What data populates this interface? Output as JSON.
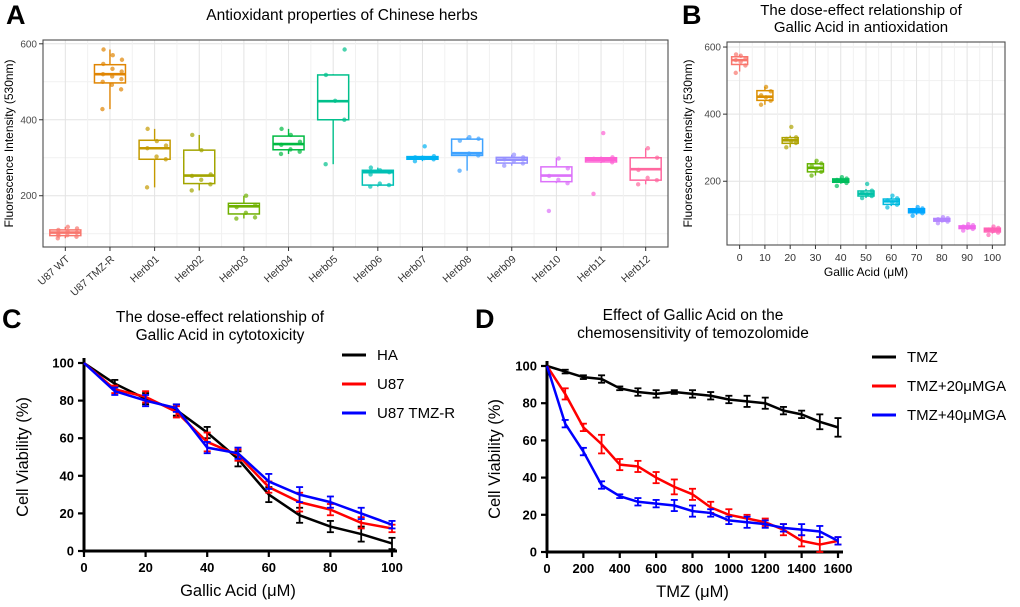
{
  "chart_data": [
    {
      "panel": "A",
      "type": "box",
      "title": "Antioxidant properties of Chinese herbs",
      "title_lines": [
        "Antioxidant properties of Chinese herbs"
      ],
      "xlabel": "",
      "ylabel": "Fluorescence Intensity (530nm)",
      "ylim": [
        65,
        610
      ],
      "yticks": [
        200,
        400,
        600
      ],
      "yticks_minor": [
        100,
        300,
        500
      ],
      "grid": true,
      "boxes": [
        {
          "category": "U87 WT",
          "color": "#F8766D",
          "low": 88,
          "q1": 95,
          "median": 103,
          "q3": 110,
          "high": 118,
          "points": [
            88,
            92,
            96,
            100,
            103,
            106,
            110,
            114,
            118,
            95
          ]
        },
        {
          "category": "U87 TMZ-R",
          "color": "#E08503",
          "low": 428,
          "q1": 497,
          "median": 520,
          "q3": 545,
          "high": 585,
          "points": [
            428,
            480,
            492,
            500,
            507,
            514,
            520,
            527,
            534,
            547,
            558,
            570,
            585
          ]
        },
        {
          "category": "Herb01",
          "color": "#C49A00",
          "low": 222,
          "q1": 296,
          "median": 325,
          "q3": 346,
          "high": 376,
          "points": [
            222,
            296,
            303,
            325,
            332,
            344,
            376
          ]
        },
        {
          "category": "Herb02",
          "color": "#A3A500",
          "low": 214,
          "q1": 232,
          "median": 253,
          "q3": 320,
          "high": 360,
          "points": [
            214,
            230,
            242,
            252,
            256,
            320,
            360
          ]
        },
        {
          "category": "Herb03",
          "color": "#6FB000",
          "low": 140,
          "q1": 152,
          "median": 172,
          "q3": 180,
          "high": 200,
          "points": [
            140,
            143,
            155,
            170,
            176,
            200
          ]
        },
        {
          "category": "Herb04",
          "color": "#00BA42",
          "low": 310,
          "q1": 321,
          "median": 336,
          "q3": 357,
          "high": 376,
          "points": [
            310,
            316,
            322,
            334,
            342,
            360,
            376
          ]
        },
        {
          "category": "Herb05",
          "color": "#00C08B",
          "low": 283,
          "q1": 400,
          "median": 449,
          "q3": 518,
          "high": 520,
          "points": [
            283,
            400,
            450,
            518,
            585
          ]
        },
        {
          "category": "Herb06",
          "color": "#00C0B4",
          "low": 224,
          "q1": 228,
          "median": 262,
          "q3": 267,
          "high": 274,
          "points": [
            224,
            228,
            232,
            256,
            262,
            267,
            274
          ]
        },
        {
          "category": "Herb07",
          "color": "#00B2F3",
          "low": 291,
          "q1": 296,
          "median": 300,
          "q3": 303,
          "high": 306,
          "points": [
            291,
            296,
            299,
            301,
            304,
            330
          ]
        },
        {
          "category": "Herb08",
          "color": "#3EA2FF",
          "low": 266,
          "q1": 306,
          "median": 312,
          "q3": 349,
          "high": 354,
          "points": [
            266,
            306,
            311,
            345,
            350,
            354
          ]
        },
        {
          "category": "Herb09",
          "color": "#9590FF",
          "low": 279,
          "q1": 286,
          "median": 295,
          "q3": 301,
          "high": 308,
          "points": [
            279,
            285,
            291,
            296,
            301,
            308
          ]
        },
        {
          "category": "Herb10",
          "color": "#DC71FA",
          "low": 233,
          "q1": 237,
          "median": 253,
          "q3": 276,
          "high": 300,
          "points": [
            160,
            233,
            242,
            252,
            272,
            298
          ]
        },
        {
          "category": "Herb11",
          "color": "#FD61D3",
          "low": 286,
          "q1": 289,
          "median": 295,
          "q3": 300,
          "high": 303,
          "points": [
            205,
            288,
            293,
            297,
            301,
            365
          ]
        },
        {
          "category": "Herb12",
          "color": "#FF689F",
          "low": 230,
          "q1": 241,
          "median": 270,
          "q3": 300,
          "high": 325,
          "points": [
            230,
            241,
            247,
            268,
            300,
            325
          ]
        }
      ]
    },
    {
      "panel": "B",
      "type": "box",
      "title": "The dose-effect relationship of Gallic Acid in antioxidation",
      "title_lines": [
        "The dose-effect relationship of",
        "Gallic Acid in antioxidation"
      ],
      "xlabel": "Gallic Acid (μM)",
      "ylabel": "Fluorescence Intensity (530nm)",
      "ylim": [
        10,
        615
      ],
      "yticks": [
        200,
        400,
        600
      ],
      "yticks_minor": [
        100,
        300,
        500
      ],
      "grid": true,
      "boxes": [
        {
          "category": "0",
          "color": "#F8766D",
          "low": 527,
          "q1": 548,
          "median": 561,
          "q3": 571,
          "high": 577,
          "points": [
            523,
            545,
            556,
            561,
            566,
            574,
            578
          ]
        },
        {
          "category": "10",
          "color": "#DB8E00",
          "low": 428,
          "q1": 441,
          "median": 452,
          "q3": 470,
          "high": 481,
          "points": [
            428,
            440,
            450,
            456,
            468,
            481
          ]
        },
        {
          "category": "20",
          "color": "#AEA200",
          "low": 301,
          "q1": 313,
          "median": 322,
          "q3": 330,
          "high": 336,
          "points": [
            301,
            314,
            320,
            326,
            331,
            362
          ]
        },
        {
          "category": "30",
          "color": "#64B200",
          "low": 217,
          "q1": 228,
          "median": 240,
          "q3": 252,
          "high": 261,
          "points": [
            217,
            228,
            237,
            246,
            253,
            261
          ]
        },
        {
          "category": "40",
          "color": "#00BD5C",
          "low": 193,
          "q1": 197,
          "median": 202,
          "q3": 207,
          "high": 211,
          "points": [
            186,
            195,
            200,
            204,
            208,
            212
          ]
        },
        {
          "category": "50",
          "color": "#00C1A7",
          "low": 150,
          "q1": 156,
          "median": 163,
          "q3": 171,
          "high": 177,
          "points": [
            150,
            156,
            161,
            166,
            172,
            192
          ]
        },
        {
          "category": "60",
          "color": "#00BADE",
          "low": 126,
          "q1": 131,
          "median": 140,
          "q3": 147,
          "high": 152,
          "points": [
            122,
            130,
            137,
            143,
            149,
            157
          ]
        },
        {
          "category": "70",
          "color": "#00A6FF",
          "low": 100,
          "q1": 106,
          "median": 112,
          "q3": 118,
          "high": 122,
          "points": [
            97,
            105,
            110,
            114,
            119,
            123
          ]
        },
        {
          "category": "80",
          "color": "#B385FF",
          "low": 77,
          "q1": 81,
          "median": 85,
          "q3": 89,
          "high": 92,
          "points": [
            75,
            80,
            84,
            87,
            90,
            93
          ]
        },
        {
          "category": "90",
          "color": "#EF67EB",
          "low": 55,
          "q1": 59,
          "median": 63,
          "q3": 67,
          "high": 71,
          "points": [
            53,
            58,
            62,
            65,
            69,
            72
          ]
        },
        {
          "category": "100",
          "color": "#FF63B6",
          "low": 44,
          "q1": 49,
          "median": 55,
          "q3": 60,
          "high": 64,
          "points": [
            40,
            47,
            52,
            56,
            61,
            65
          ]
        }
      ]
    },
    {
      "panel": "C",
      "type": "line",
      "title": "The dose-effect relationship of Gallic Acid in cytotoxicity",
      "title_lines": [
        "The dose-effect relationship of",
        "Gallic Acid in cytotoxicity"
      ],
      "xlabel": "Gallic Acid (μM)",
      "ylabel": "Cell Viability (%)",
      "xlim": [
        0,
        100
      ],
      "ylim": [
        0,
        100
      ],
      "xticks": [
        0,
        20,
        40,
        60,
        80,
        100
      ],
      "yticks": [
        0,
        20,
        40,
        60,
        80,
        100
      ],
      "grid": false,
      "legend_position": "top-right",
      "x": [
        0,
        10,
        20,
        30,
        40,
        50,
        60,
        70,
        80,
        90,
        100
      ],
      "series": [
        {
          "name": "HA",
          "color": "#000000",
          "values": [
            100,
            89,
            81,
            75,
            63,
            49,
            30,
            19,
            13,
            9,
            4
          ],
          "errors": [
            0,
            2,
            3,
            3,
            3,
            4,
            4,
            4,
            3,
            4,
            3
          ]
        },
        {
          "name": "U87",
          "color": "#FF0000",
          "values": [
            100,
            86,
            82,
            74,
            58,
            51,
            34,
            26,
            22,
            15,
            12
          ],
          "errors": [
            0,
            2,
            3,
            3,
            5,
            3,
            3,
            5,
            3,
            3,
            2
          ]
        },
        {
          "name": "U87 TMZ-R",
          "color": "#0000FF",
          "values": [
            100,
            85,
            80,
            76,
            55,
            52,
            37,
            30,
            26,
            20,
            14
          ],
          "errors": [
            0,
            2,
            3,
            2,
            3,
            3,
            4,
            4,
            3,
            3,
            2
          ]
        }
      ]
    },
    {
      "panel": "D",
      "type": "line",
      "title": "Effect of Gallic Acid on the chemosensitivity of temozolomide",
      "title_lines": [
        "Effect of Gallic Acid on the",
        "chemosensitivity of temozolomide"
      ],
      "xlabel": "TMZ (μM)",
      "ylabel": "Cell Viability (%)",
      "xlim": [
        0,
        1600
      ],
      "ylim": [
        0,
        100
      ],
      "xticks": [
        0,
        200,
        400,
        600,
        800,
        1000,
        1200,
        1400,
        1600
      ],
      "yticks": [
        0,
        20,
        40,
        60,
        80,
        100
      ],
      "grid": false,
      "legend_position": "top-right",
      "x": [
        0,
        100,
        200,
        300,
        400,
        500,
        600,
        700,
        800,
        900,
        1000,
        1100,
        1200,
        1300,
        1400,
        1500,
        1600
      ],
      "series": [
        {
          "name": "TMZ",
          "color": "#000000",
          "values": [
            100,
            97,
            94,
            93,
            88,
            86,
            85,
            86,
            85,
            84,
            82,
            81,
            80,
            76,
            74,
            70,
            67
          ],
          "errors": [
            0,
            1,
            1,
            2,
            1,
            2,
            2,
            1,
            2,
            2,
            2,
            3,
            3,
            2,
            2,
            4,
            5
          ]
        },
        {
          "name": "TMZ+20μMGA",
          "color": "#FF0000",
          "values": [
            100,
            85,
            67,
            58,
            47,
            46,
            40,
            35,
            31,
            24,
            20,
            18,
            16,
            12,
            6,
            4,
            6
          ],
          "errors": [
            0,
            3,
            2,
            5,
            3,
            3,
            3,
            4,
            3,
            3,
            3,
            2,
            2,
            3,
            3,
            4,
            2
          ]
        },
        {
          "name": "TMZ+40μMGA",
          "color": "#0000FF",
          "values": [
            100,
            69,
            54,
            36,
            30,
            27,
            26,
            25,
            22,
            21,
            17,
            16,
            15,
            13,
            12,
            11,
            6
          ],
          "errors": [
            0,
            2,
            2,
            2,
            1,
            2,
            2,
            3,
            3,
            2,
            2,
            3,
            2,
            2,
            3,
            3,
            2
          ]
        }
      ]
    }
  ]
}
